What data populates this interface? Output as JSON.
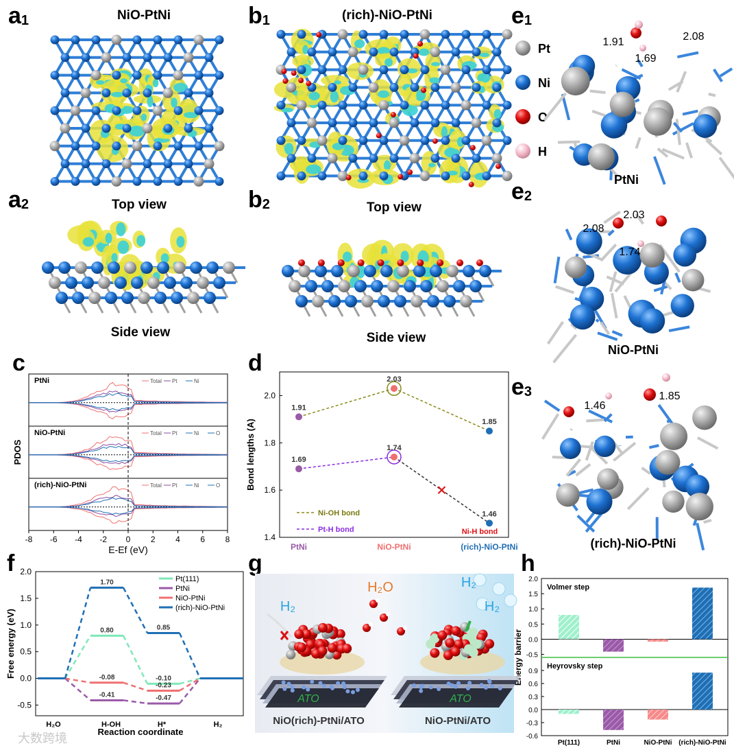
{
  "panels": {
    "a1": {
      "letter": "a",
      "sub": "1",
      "title": "NiO-PtNi"
    },
    "a2": {
      "letter": "a",
      "sub": "2",
      "caption": "Top  view",
      "caption2": "Side  view"
    },
    "b1": {
      "letter": "b",
      "sub": "1",
      "title": "(rich)-NiO-PtNi"
    },
    "b2": {
      "letter": "b",
      "sub": "2",
      "caption": "Top  view",
      "caption2": "Side  view"
    },
    "c": {
      "letter": "c"
    },
    "d": {
      "letter": "d"
    },
    "e1": {
      "letter": "e",
      "sub": "1",
      "caption": "PtNi",
      "bonds": [
        "1.91",
        "2.08",
        "1.69"
      ]
    },
    "e2": {
      "letter": "e",
      "sub": "2",
      "caption": "NiO-PtNi",
      "bonds": [
        "2.03",
        "2.08",
        "1.74"
      ]
    },
    "e3": {
      "letter": "e",
      "sub": "3",
      "caption": "(rich)-NiO-PtNi",
      "bonds": [
        "1.46",
        "1.85"
      ]
    },
    "f": {
      "letter": "f"
    },
    "g": {
      "letter": "g"
    },
    "h": {
      "letter": "h"
    }
  },
  "legend_atoms": [
    {
      "label": "Pt",
      "color": "#a9a9a9"
    },
    {
      "label": "Ni",
      "color": "#1a6fc4"
    },
    {
      "label": "O",
      "color": "#e01010"
    },
    {
      "label": "H",
      "color": "#f3b8c8"
    }
  ],
  "illustration_g": {
    "h2o": "H₂O",
    "h2_left": "H₂",
    "h2_right_top": "H₂",
    "h2_right": "H₂",
    "ato_left": "ATO",
    "ato_right": "ATO",
    "caption_left": "NiO(rich)-PtNi/ATO",
    "caption_right": "NiO-PtNi/ATO"
  },
  "watermark": "大数跨境",
  "colors": {
    "pt": "#a9a9a9",
    "ni": "#1a6fc4",
    "o": "#e01010",
    "h": "#f3b8c8",
    "iso_yellow": "#e8e23a",
    "iso_cyan": "#3ad0d8",
    "f_pt111": "#7ee8b8",
    "f_ptni": "#9a5aa8",
    "f_nio": "#f07070",
    "f_rich": "#1f6fb5"
  },
  "chart_data": [
    {
      "id": "c",
      "type": "line",
      "title": "",
      "xlabel": "E-Ef (eV)",
      "ylabel": "PDOS",
      "xlim": [
        -8,
        8
      ],
      "xticks": [
        "-8",
        "-6",
        "-4",
        "-2",
        "0",
        "2",
        "4",
        "6",
        "8"
      ],
      "subplots": [
        {
          "name": "PtNi",
          "legend": [
            "Total",
            "Pt",
            "Ni"
          ]
        },
        {
          "name": "NiO-PtNi",
          "legend": [
            "Total",
            "Pt",
            "Ni",
            "O"
          ]
        },
        {
          "name": "(rich)-NiO-PtNi",
          "legend": [
            "Total",
            "Pt",
            "Ni",
            "O"
          ]
        }
      ]
    },
    {
      "id": "d",
      "type": "scatter",
      "title": "",
      "xlabel": "",
      "ylabel": "Bond lengths (A)",
      "categories": [
        "PtNi",
        "NiO-PtNi",
        "(rich)-NiO-PtNi"
      ],
      "ylim": [
        1.4,
        2.1
      ],
      "yticks": [
        "1.4",
        "1.6",
        "1.8",
        "2.0"
      ],
      "series": [
        {
          "name": "Ni-OH bond",
          "values": [
            1.91,
            2.03,
            1.85
          ],
          "labels": [
            "1.91",
            "2.03",
            "1.85"
          ]
        },
        {
          "name": "Pt-H    bond",
          "values": [
            1.69,
            1.74,
            1.46
          ],
          "labels": [
            "1.69",
            "1.74",
            "1.46"
          ]
        }
      ],
      "annotations": [
        "Ni-H bond"
      ]
    },
    {
      "id": "f",
      "type": "line",
      "title": "",
      "xlabel": "Reaction coordinate",
      "ylabel": "Free energy (eV)",
      "categories": [
        "H₂O",
        "H-OH",
        "H*",
        "H₂"
      ],
      "ylim": [
        -0.7,
        2.0
      ],
      "yticks": [
        "-0.5",
        "0.0",
        "0.5",
        "1.0",
        "1.5",
        "2.0"
      ],
      "series": [
        {
          "name": "Pt(111)",
          "values": [
            0,
            0.8,
            -0.1,
            0
          ],
          "labels": [
            "0.80",
            "-0.10"
          ]
        },
        {
          "name": "PtNi",
          "values": [
            0,
            -0.41,
            -0.47,
            0
          ],
          "labels": [
            "-0.41",
            "-0.47"
          ]
        },
        {
          "name": "NiO-PtNi",
          "values": [
            0,
            -0.08,
            -0.23,
            0
          ],
          "labels": [
            "-0.08",
            "-0.23"
          ]
        },
        {
          "name": "(rich)-NiO-PtNi",
          "values": [
            0,
            1.7,
            0.85,
            0
          ],
          "labels": [
            "1.70",
            "0.85"
          ]
        }
      ]
    },
    {
      "id": "h",
      "type": "bar",
      "title": "",
      "xlabel": "",
      "ylabel": "Energy barrier",
      "categories": [
        "Pt(111)",
        "PtNi",
        "NiO-PtNi",
        "(rich)-NiO-PtNi"
      ],
      "subplots": [
        {
          "name": "Volmer step",
          "values": [
            0.8,
            -0.41,
            -0.08,
            1.7
          ],
          "ylim": [
            -0.6,
            2.0
          ],
          "yticks": [
            "-0.5",
            "0.0",
            "0.5",
            "1.0",
            "1.5",
            "2.0"
          ]
        },
        {
          "name": "Heyrovsky step",
          "values": [
            -0.1,
            -0.47,
            -0.23,
            0.85
          ],
          "ylim": [
            -0.6,
            1.2
          ],
          "yticks": [
            "-0.6",
            "-0.3",
            "0.0",
            "0.3",
            "0.6",
            "0.9"
          ]
        }
      ]
    }
  ]
}
